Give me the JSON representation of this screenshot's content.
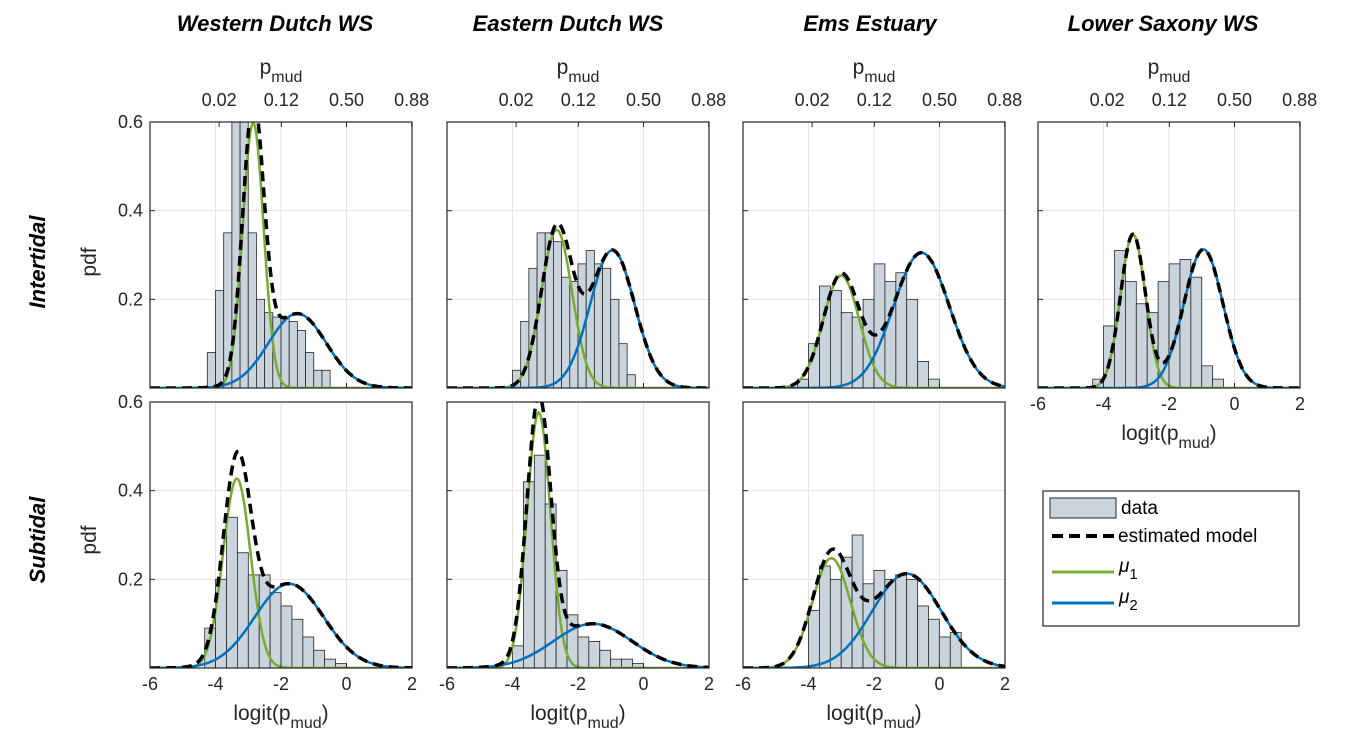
{
  "figure": {
    "column_titles": [
      "Western Dutch WS",
      "Eastern Dutch WS",
      "Ems Estuary",
      "Lower Saxony WS"
    ],
    "row_labels": [
      "Intertidal",
      "Subtidal"
    ],
    "top_axis_label": "p",
    "top_axis_label_sub": "mud",
    "bottom_axis_label": "logit(p",
    "bottom_axis_label_sub": "mud",
    "bottom_axis_label_close": ")",
    "y_axis_label": "pdf",
    "top_ticks": {
      "labels": [
        "0.02",
        "0.12",
        "0.50",
        "0.88"
      ],
      "logit_positions": [
        -3.89,
        -1.99,
        0.0,
        1.99
      ]
    },
    "x_ticks": [
      -6,
      -4,
      -2,
      0,
      2
    ],
    "y_ticks": [
      0.2,
      0.4,
      0.6
    ],
    "colors": {
      "data_fill": "#c9d4dc",
      "model": "#000000",
      "mu1": "#77ac30",
      "mu2": "#0072bd",
      "grid": "#e3e3e3"
    }
  },
  "legend": {
    "items": [
      {
        "label": "data",
        "kind": "patch"
      },
      {
        "label": "estimated model",
        "kind": "dashed"
      },
      {
        "label": "μ",
        "sub": "1",
        "kind": "mu1"
      },
      {
        "label": "μ",
        "sub": "2",
        "kind": "mu2"
      }
    ]
  },
  "chart_data": [
    {
      "type": "histogram",
      "title": "Western Dutch WS",
      "row": "Intertidal",
      "xlim": [
        -6,
        2
      ],
      "ylim": [
        0,
        0.6
      ],
      "bin_width": 0.25,
      "bin_start": -4.25,
      "values": [
        0.08,
        0.22,
        0.35,
        0.6,
        0.6,
        0.35,
        0.2,
        0.17,
        0.16,
        0.16,
        0.15,
        0.13,
        0.08,
        0.04,
        0.04
      ],
      "components": [
        {
          "name": "μ1",
          "mean": -2.85,
          "sd": 0.32,
          "weight": 0.48
        },
        {
          "name": "μ2",
          "mean": -1.5,
          "sd": 0.88,
          "weight": 0.37
        }
      ]
    },
    {
      "type": "histogram",
      "title": "Eastern Dutch WS",
      "row": "Intertidal",
      "xlim": [
        -6,
        2
      ],
      "ylim": [
        0,
        0.6
      ],
      "bin_width": 0.25,
      "bin_start": -4.0,
      "values": [
        0.04,
        0.15,
        0.27,
        0.35,
        0.35,
        0.33,
        0.25,
        0.24,
        0.28,
        0.31,
        0.28,
        0.27,
        0.2,
        0.1,
        0.03
      ],
      "components": [
        {
          "name": "μ1",
          "mean": -2.65,
          "sd": 0.47,
          "weight": 0.42
        },
        {
          "name": "μ2",
          "mean": -0.95,
          "sd": 0.68,
          "weight": 0.53
        }
      ]
    },
    {
      "type": "histogram",
      "title": "Ems Estuary",
      "row": "Intertidal",
      "xlim": [
        -6,
        2
      ],
      "ylim": [
        0,
        0.6
      ],
      "bin_width": 0.333,
      "bin_start": -4.33,
      "values": [
        0.02,
        0.1,
        0.23,
        0.22,
        0.17,
        0.16,
        0.2,
        0.28,
        0.24,
        0.26,
        0.2,
        0.06,
        0.02
      ],
      "components": [
        {
          "name": "μ1",
          "mean": -3.0,
          "sd": 0.55,
          "weight": 0.35
        },
        {
          "name": "μ2",
          "mean": -0.55,
          "sd": 0.85,
          "weight": 0.65
        }
      ]
    },
    {
      "type": "histogram",
      "title": "Lower Saxony WS",
      "row": "Intertidal",
      "xlim": [
        -6,
        2
      ],
      "ylim": [
        0,
        0.6
      ],
      "bin_width": 0.333,
      "bin_start": -4.33,
      "values": [
        0.02,
        0.14,
        0.31,
        0.24,
        0.19,
        0.17,
        0.24,
        0.28,
        0.29,
        0.25,
        0.05,
        0.02
      ],
      "components": [
        {
          "name": "μ1",
          "mean": -3.1,
          "sd": 0.38,
          "weight": 0.33
        },
        {
          "name": "μ2",
          "mean": -0.95,
          "sd": 0.6,
          "weight": 0.47
        }
      ]
    },
    {
      "type": "histogram",
      "title": "Western Dutch WS",
      "row": "Subtidal",
      "xlim": [
        -6,
        2
      ],
      "ylim": [
        0,
        0.6
      ],
      "bin_width": 0.333,
      "bin_start": -4.33,
      "values": [
        0.09,
        0.2,
        0.34,
        0.26,
        0.21,
        0.21,
        0.17,
        0.14,
        0.11,
        0.07,
        0.04,
        0.02,
        0.01
      ],
      "components": [
        {
          "name": "μ1",
          "mean": -3.35,
          "sd": 0.42,
          "weight": 0.45
        },
        {
          "name": "μ2",
          "mean": -1.75,
          "sd": 1.05,
          "weight": 0.5
        }
      ]
    },
    {
      "type": "histogram",
      "title": "Eastern Dutch WS",
      "row": "Subtidal",
      "xlim": [
        -6,
        2
      ],
      "ylim": [
        0,
        0.6
      ],
      "bin_width": 0.333,
      "bin_start": -4.0,
      "values": [
        0.05,
        0.42,
        0.48,
        0.37,
        0.22,
        0.12,
        0.07,
        0.06,
        0.04,
        0.02,
        0.02,
        0.01
      ],
      "components": [
        {
          "name": "μ1",
          "mean": -3.2,
          "sd": 0.36,
          "weight": 0.52
        },
        {
          "name": "μ2",
          "mean": -1.55,
          "sd": 1.2,
          "weight": 0.3
        }
      ]
    },
    {
      "type": "histogram",
      "title": "Ems Estuary",
      "row": "Subtidal",
      "xlim": [
        -6,
        2
      ],
      "ylim": [
        0,
        0.6
      ],
      "bin_width": 0.333,
      "bin_start": -4.0,
      "values": [
        0.13,
        0.23,
        0.2,
        0.25,
        0.3,
        0.19,
        0.22,
        0.2,
        0.21,
        0.2,
        0.14,
        0.11,
        0.07,
        0.08
      ],
      "components": [
        {
          "name": "μ1",
          "mean": -3.3,
          "sd": 0.58,
          "weight": 0.36
        },
        {
          "name": "μ2",
          "mean": -1.0,
          "sd": 1.05,
          "weight": 0.56
        }
      ]
    }
  ]
}
